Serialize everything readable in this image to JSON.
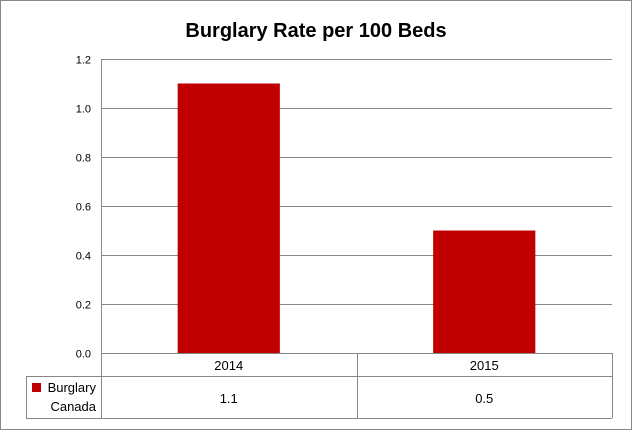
{
  "chart_data": {
    "type": "bar",
    "title": "Burglary Rate per 100 Beds",
    "categories": [
      "2014",
      "2015"
    ],
    "series": [
      {
        "name": "Burglary Canada",
        "name_lines": [
          "Burglary",
          "Canada"
        ],
        "values": [
          1.1,
          0.5
        ],
        "value_labels": [
          "1.1",
          "0.5"
        ]
      }
    ],
    "ylim": [
      0,
      1.2
    ],
    "yticks": [
      "0.0",
      "0.2",
      "0.4",
      "0.6",
      "0.8",
      "1.0",
      "1.2"
    ],
    "grid": true,
    "legend": "data-table",
    "xlabel": "",
    "ylabel": ""
  },
  "colors": {
    "bar": "#C00000",
    "grid": "#868686",
    "border": "#868686"
  }
}
